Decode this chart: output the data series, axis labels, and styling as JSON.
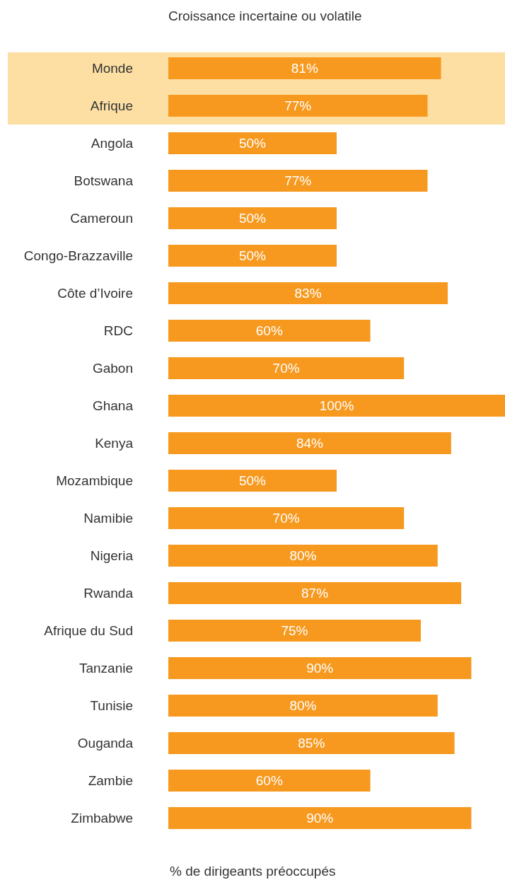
{
  "chart_data": {
    "type": "bar",
    "orientation": "horizontal",
    "title": "Croissance incertaine ou volatile",
    "xlabel": "% de dirigeants préoccupés",
    "categories": [
      "Monde",
      "Afrique",
      "Angola",
      "Botswana",
      "Cameroun",
      "Congo-Brazzaville",
      "Côte d’Ivoire",
      "RDC",
      "Gabon",
      "Ghana",
      "Kenya",
      "Mozambique",
      "Namibie",
      "Nigeria",
      "Rwanda",
      "Afrique du Sud",
      "Tanzanie",
      "Tunisie",
      "Ouganda",
      "Zambie",
      "Zimbabwe"
    ],
    "values": [
      81,
      77,
      50,
      77,
      50,
      50,
      83,
      60,
      70,
      100,
      84,
      50,
      70,
      80,
      87,
      75,
      90,
      80,
      85,
      60,
      90
    ],
    "value_labels": [
      "81%",
      "77%",
      "50%",
      "77%",
      "50%",
      "50%",
      "83%",
      "60%",
      "70%",
      "100%",
      "84%",
      "50%",
      "70%",
      "80%",
      "87%",
      "75%",
      "90%",
      "80%",
      "85%",
      "60%",
      "90%"
    ],
    "color": "#f7991f",
    "bands": [
      {
        "axis": "y",
        "from": "Monde",
        "to": "Afrique",
        "color": "#fddfa4"
      }
    ],
    "grid": false,
    "legend": false
  }
}
